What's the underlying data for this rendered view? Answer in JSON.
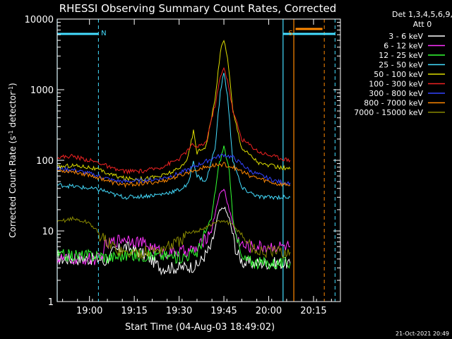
{
  "chart_data": {
    "type": "line",
    "title": "RHESSI Observing Summary Count Rates, Corrected",
    "xlabel": "Start Time (04-Aug-03 18:49:02)",
    "ylabel": "Corrected Count Rate (s⁻¹ detector⁻¹)",
    "ylabel_base": "Corrected Count Rate (s",
    "ylabel_mid": " detector",
    "ylabel_end": ")",
    "ylabel_sup": "-1",
    "yscale": "log",
    "ylim": [
      1,
      10000
    ],
    "xlim": [
      18.82,
      20.4
    ],
    "x_unit": "hours UT",
    "x_ticks": [
      {
        "v": 19.0,
        "label": "19:00"
      },
      {
        "v": 19.25,
        "label": "19:15"
      },
      {
        "v": 19.5,
        "label": "19:30"
      },
      {
        "v": 19.75,
        "label": "19:45"
      },
      {
        "v": 20.0,
        "label": "20:00"
      },
      {
        "v": 20.25,
        "label": "20:15"
      }
    ],
    "y_ticks": [
      {
        "v": 1,
        "label": "1"
      },
      {
        "v": 10,
        "label": "10"
      },
      {
        "v": 100,
        "label": "100"
      },
      {
        "v": 1000,
        "label": "1000"
      },
      {
        "v": 10000,
        "label": "10000"
      }
    ],
    "legend_header": [
      "Det 1,3,4,5,6,9,",
      "Att 0"
    ],
    "series": [
      {
        "name": "3 - 6 keV",
        "color": "#ffffff",
        "x": [
          18.82,
          18.93,
          19.04,
          19.07,
          19.08,
          19.13,
          19.2,
          19.28,
          19.34,
          19.4,
          19.5,
          19.6,
          19.68,
          19.72,
          19.75,
          19.78,
          19.82,
          19.86,
          19.95,
          20.05,
          20.1,
          20.12
        ],
        "y": [
          4,
          4,
          4,
          4,
          3.5,
          5,
          6,
          5,
          4,
          3,
          3,
          3.2,
          6,
          18,
          22,
          15,
          5,
          3.5,
          3.5,
          3.5,
          3.5,
          3.5
        ]
      },
      {
        "name": "6 - 12 keV",
        "color": "#ff33ff",
        "x": [
          18.82,
          18.93,
          19.04,
          19.07,
          19.08,
          19.13,
          19.2,
          19.28,
          19.34,
          19.4,
          19.5,
          19.6,
          19.68,
          19.72,
          19.75,
          19.78,
          19.82,
          19.86,
          19.95,
          20.05,
          20.1,
          20.12
        ],
        "y": [
          4,
          4,
          4,
          4,
          6,
          7,
          8,
          7,
          6,
          5,
          5,
          5.5,
          10,
          30,
          40,
          20,
          8,
          6,
          6,
          6,
          6,
          6
        ]
      },
      {
        "name": "12 - 25 keV",
        "color": "#33ff33",
        "x": [
          18.82,
          18.93,
          19.04,
          19.07,
          19.1,
          19.2,
          19.3,
          19.4,
          19.5,
          19.6,
          19.68,
          19.72,
          19.75,
          19.78,
          19.8,
          19.85,
          19.95,
          20.05,
          20.1,
          20.12
        ],
        "y": [
          4.5,
          4.5,
          4.5,
          4.5,
          4.2,
          4.5,
          4.5,
          4.5,
          4.2,
          5,
          15,
          80,
          160,
          70,
          15,
          4,
          3.5,
          3.5,
          3.5,
          3.5
        ]
      },
      {
        "name": "25 - 50 keV",
        "color": "#44ddff",
        "x": [
          18.82,
          18.9,
          19.0,
          19.07,
          19.13,
          19.2,
          19.3,
          19.4,
          19.5,
          19.55,
          19.58,
          19.6,
          19.65,
          19.7,
          19.73,
          19.75,
          19.77,
          19.8,
          19.85,
          19.95,
          20.05,
          20.12
        ],
        "y": [
          45,
          43,
          40,
          38,
          33,
          30,
          31,
          33,
          38,
          45,
          100,
          60,
          50,
          150,
          900,
          1800,
          800,
          100,
          40,
          30,
          30,
          30
        ]
      },
      {
        "name": "50 - 100 keV",
        "color": "#dddd00",
        "x": [
          18.82,
          18.9,
          19.0,
          19.07,
          19.13,
          19.2,
          19.3,
          19.4,
          19.5,
          19.55,
          19.58,
          19.6,
          19.65,
          19.7,
          19.73,
          19.75,
          19.77,
          19.8,
          19.85,
          19.95,
          20.05,
          20.12
        ],
        "y": [
          80,
          85,
          80,
          70,
          62,
          55,
          55,
          60,
          75,
          110,
          260,
          130,
          160,
          700,
          3500,
          5000,
          3000,
          500,
          150,
          90,
          80,
          75
        ]
      },
      {
        "name": "100 - 300 keV",
        "color": "#ee2222",
        "x": [
          18.82,
          18.9,
          19.0,
          19.07,
          19.13,
          19.2,
          19.3,
          19.4,
          19.5,
          19.55,
          19.58,
          19.6,
          19.65,
          19.7,
          19.73,
          19.75,
          19.77,
          19.8,
          19.85,
          19.95,
          20.05,
          20.12
        ],
        "y": [
          110,
          115,
          100,
          90,
          75,
          70,
          70,
          80,
          105,
          140,
          170,
          150,
          180,
          600,
          1500,
          2000,
          1400,
          500,
          200,
          130,
          110,
          100
        ]
      },
      {
        "name": "300 - 800 keV",
        "color": "#3344ff",
        "x": [
          18.82,
          18.9,
          19.0,
          19.07,
          19.13,
          19.2,
          19.3,
          19.4,
          19.5,
          19.6,
          19.7,
          19.75,
          19.8,
          19.9,
          20.0,
          20.05,
          20.12
        ],
        "y": [
          75,
          74,
          65,
          58,
          52,
          50,
          52,
          55,
          65,
          85,
          110,
          120,
          110,
          70,
          55,
          50,
          48
        ]
      },
      {
        "name": "800 - 7000 keV",
        "color": "#ff8800",
        "x": [
          18.82,
          18.9,
          19.0,
          19.07,
          19.13,
          19.2,
          19.3,
          19.4,
          19.5,
          19.6,
          19.7,
          19.75,
          19.8,
          19.9,
          20.0,
          20.05,
          20.12
        ],
        "y": [
          72,
          70,
          62,
          55,
          48,
          45,
          47,
          50,
          60,
          75,
          85,
          88,
          80,
          60,
          50,
          46,
          45
        ]
      },
      {
        "name": "7000 - 15000 keV",
        "color": "#888800",
        "x": [
          18.82,
          18.85,
          18.9,
          19.0,
          19.04,
          19.07,
          19.13,
          19.2,
          19.3,
          19.35,
          19.4,
          19.5,
          19.55,
          19.6,
          19.7,
          19.75,
          19.8,
          19.85,
          19.9,
          19.95,
          20.05,
          20.12
        ],
        "y": [
          13,
          14,
          15,
          13,
          10,
          8,
          6,
          4.8,
          5,
          5.2,
          5.5,
          7,
          9,
          10,
          13,
          14,
          12,
          9,
          6,
          5,
          5,
          5
        ]
      }
    ],
    "markers": {
      "cyan_solid": [
        18.82,
        20.08
      ],
      "cyan_dashed": [
        19.05,
        20.37
      ],
      "orange_solid": [
        20.14
      ],
      "orange_dashed": [
        20.31
      ],
      "eclipse_bars": [
        [
          18.82,
          19.05
        ],
        [
          20.08,
          20.37
        ]
      ],
      "saa_bar": [
        20.15,
        20.3
      ],
      "labels": [
        {
          "text": "N",
          "x": 19.065,
          "color": "#44ddff"
        },
        {
          "text": "S",
          "x": 20.11,
          "color": "#ff8800"
        }
      ]
    },
    "grid": false,
    "legend": "top-right"
  },
  "footer_date": "21-Oct-2021 20:49"
}
